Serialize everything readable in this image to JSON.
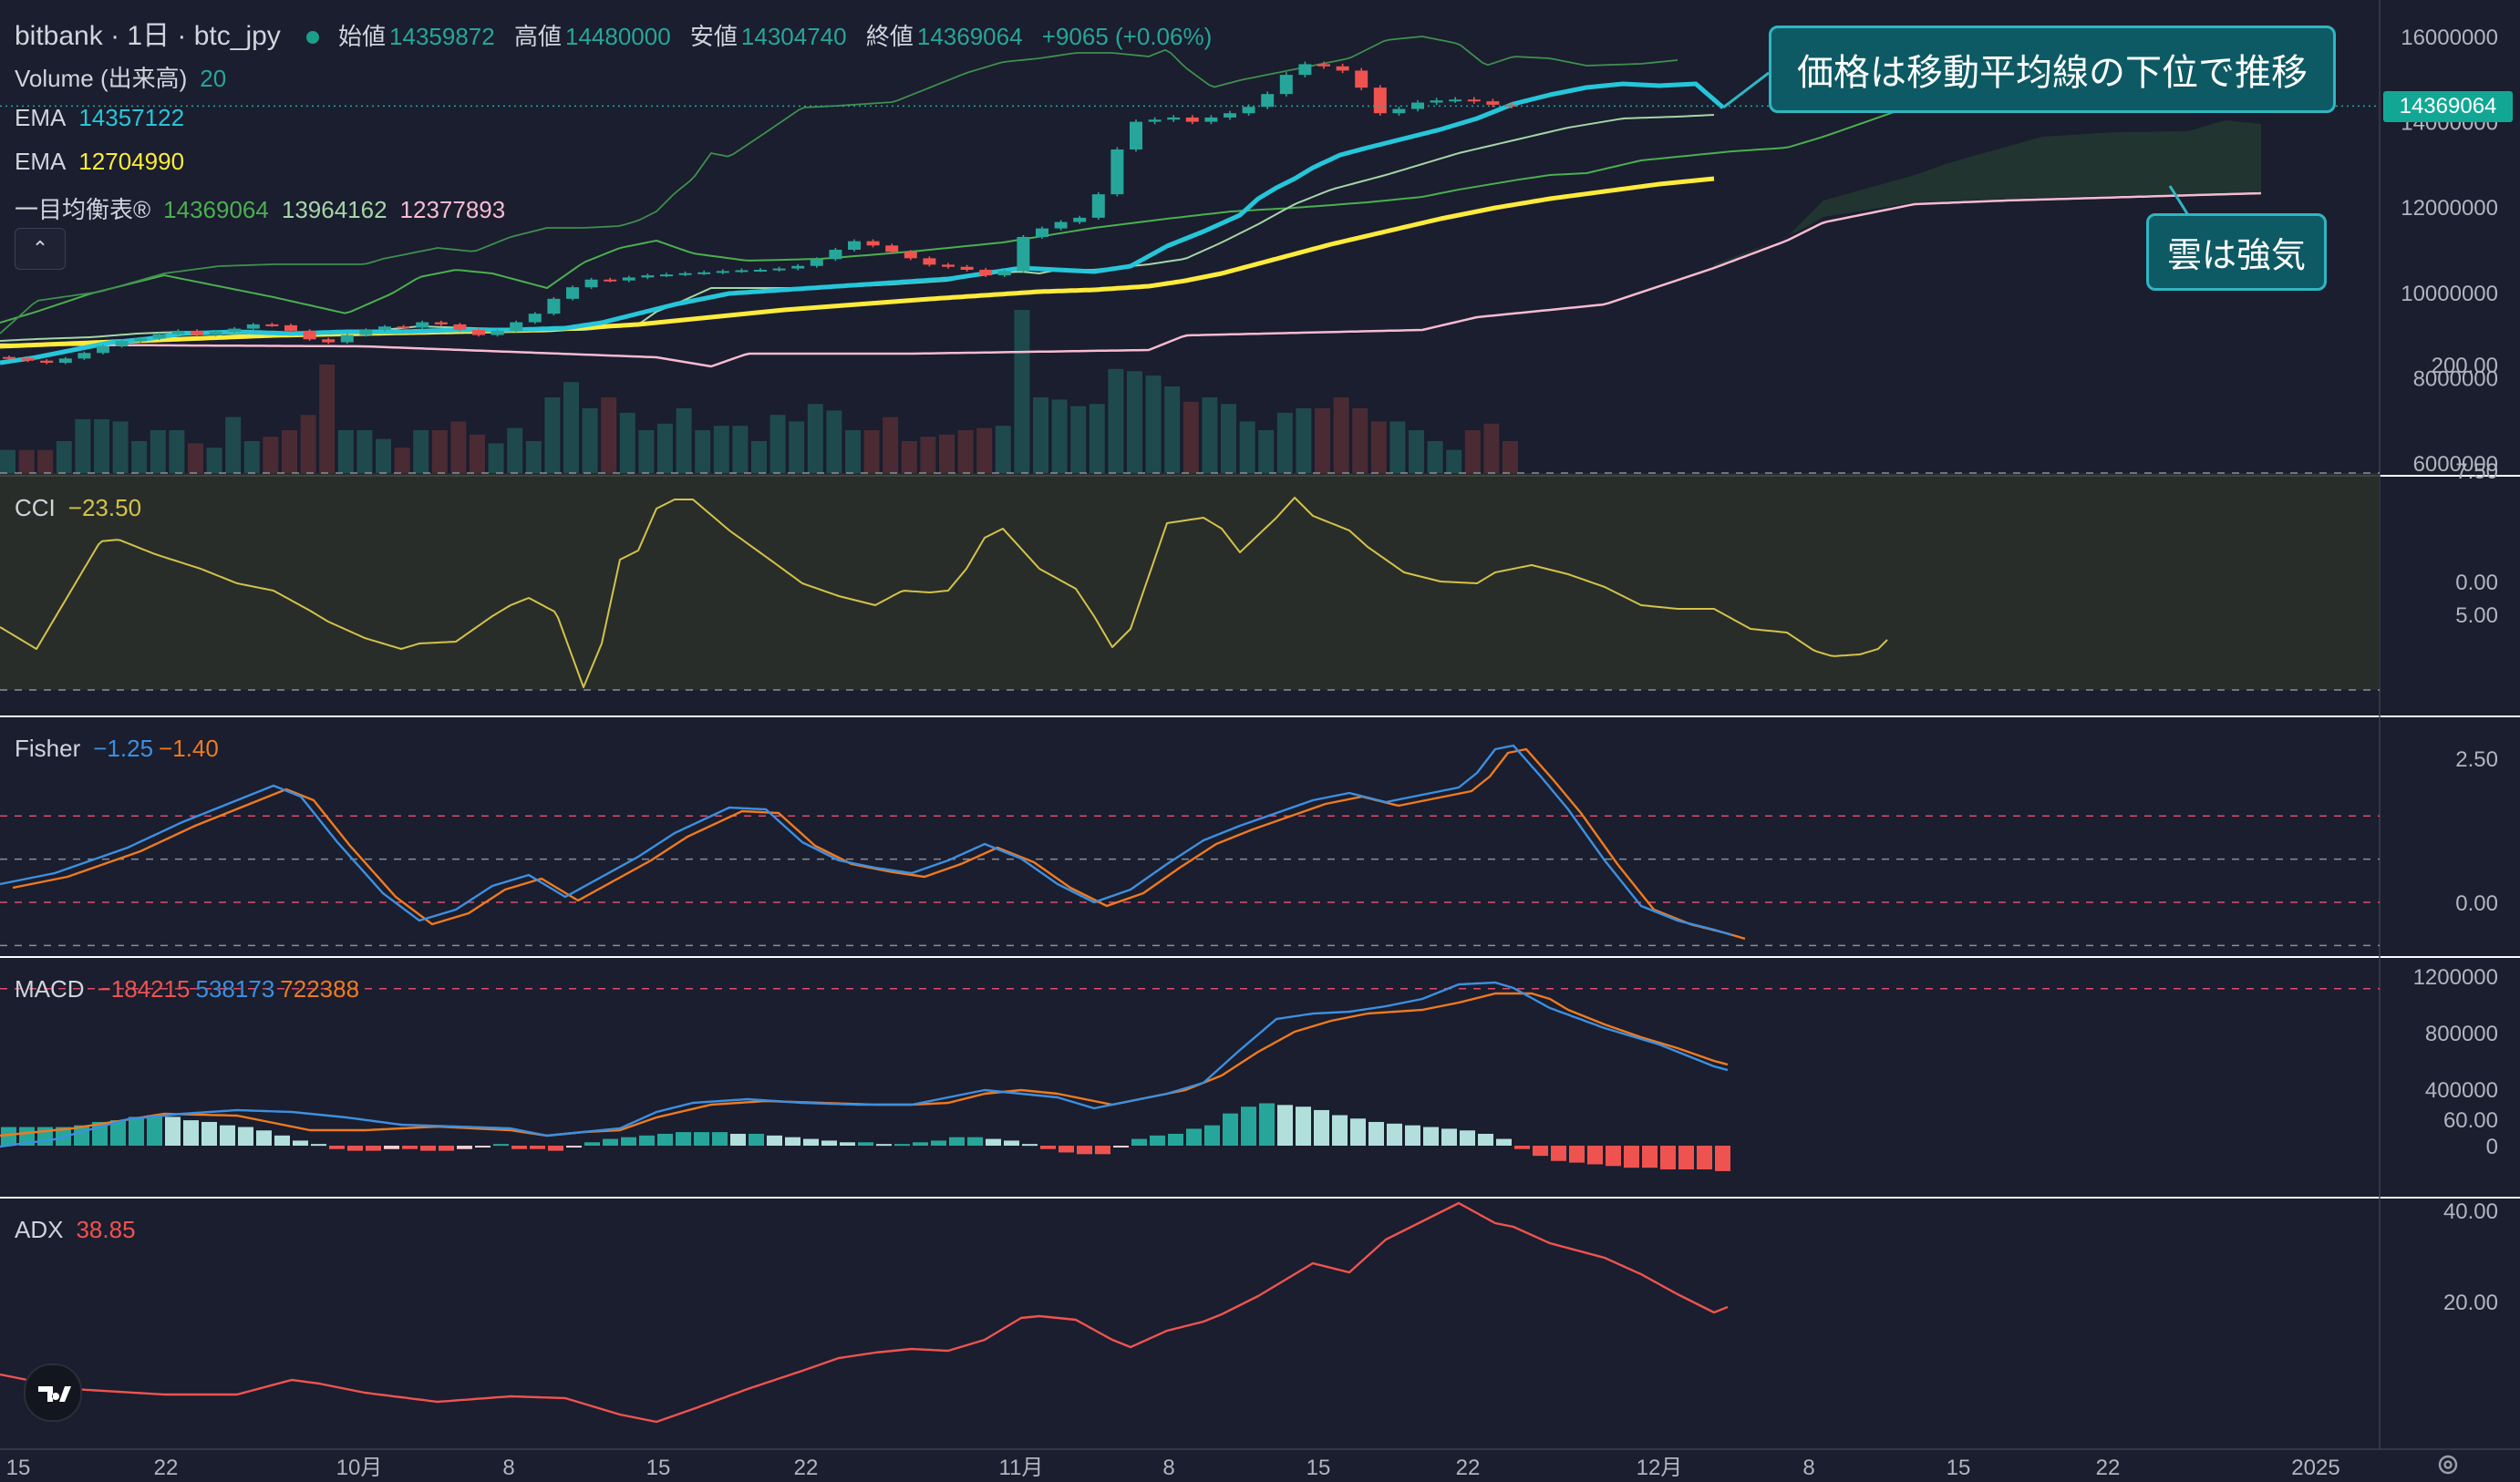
{
  "header": {
    "symbol": "bitbank · 1日 · btc_jpy",
    "ohlc": [
      {
        "label": "始値",
        "value": "14359872"
      },
      {
        "label": "高値",
        "value": "14480000"
      },
      {
        "label": "安値",
        "value": "14304740"
      },
      {
        "label": "終値",
        "value": "14369064"
      }
    ],
    "change": "+9065 (+0.06%)"
  },
  "indicators": {
    "volume_label": "Volume (出来高)",
    "volume_value": "20",
    "ema1_label": "EMA",
    "ema1_value": "14357122",
    "ema2_label": "EMA",
    "ema2_value": "12704990",
    "ichimoku_label": "一目均衡表®",
    "ichimoku_v1": "14369064",
    "ichimoku_v2": "13964162",
    "ichimoku_v3": "12377893",
    "cci_label": "CCI",
    "cci_value": "−23.50",
    "fisher_label": "Fisher",
    "fisher_v1": "−1.25",
    "fisher_v2": "−1.40",
    "macd_label": "MACD",
    "macd_v1": "−184215",
    "macd_v2": "538173",
    "macd_v3": "722388",
    "adx_label": "ADX",
    "adx_value": "38.85"
  },
  "annotations": {
    "callout_top": "価格は移動平均線の下位で推移",
    "callout_cloud": "雲は強気"
  },
  "price_tag": "14369064",
  "colors": {
    "bg": "#1a1e2e",
    "up": "#26a69a",
    "down": "#ef5350",
    "ema_fast": "#26c6da",
    "ema_slow": "#ffeb3b",
    "ichi_green": "#4caf50",
    "ichi_light": "#a5d6a7",
    "ichi_pink": "#f8bbd0",
    "cci": "#d4c24a",
    "fisher1": "#3d8fe0",
    "fisher2": "#f07a1e",
    "macd": "#3d8fe0",
    "signal": "#f07a1e",
    "adx": "#ef5350"
  },
  "chart_data": [
    {
      "type": "candlestick",
      "title": "bitbank · 1日 · btc_jpy",
      "x_axis_ticks": [
        "15",
        "22",
        "10月",
        "8",
        "15",
        "22",
        "11月",
        "8",
        "15",
        "22",
        "12月",
        "8",
        "15",
        "22",
        "2025"
      ],
      "y_axis_ticks": [
        "16000000",
        "14000000",
        "12000000",
        "10000000",
        "8000000",
        "6000000"
      ],
      "ylim": [
        5900000,
        16300000
      ],
      "closes": [
        8460000,
        8400000,
        8350000,
        8450000,
        8580000,
        8740000,
        8860000,
        8920000,
        9020000,
        9100000,
        9000000,
        9080000,
        9150000,
        9250000,
        9230000,
        9100000,
        8900000,
        8830000,
        9000000,
        9120000,
        9200000,
        9180000,
        9300000,
        9250000,
        9120000,
        9000000,
        9100000,
        9300000,
        9500000,
        9850000,
        10120000,
        10300000,
        10280000,
        10350000,
        10400000,
        10420000,
        10450000,
        10470000,
        10500000,
        10520000,
        10530000,
        10560000,
        10620000,
        10780000,
        11000000,
        11200000,
        11100000,
        10950000,
        10800000,
        10650000,
        10600000,
        10530000,
        10400000,
        10500000,
        11300000,
        11500000,
        11650000,
        11750000,
        12300000,
        13350000,
        14000000,
        14050000,
        14100000,
        14000000,
        14100000,
        14200000,
        14350000,
        14650000,
        15100000,
        15350000,
        15300000,
        15200000,
        14800000,
        14200000,
        14300000,
        14450000,
        14500000,
        14520000,
        14480000,
        14400000,
        14369064
      ],
      "volume": {
        "label": "Volume (出来高)",
        "last": 20
      },
      "ema": [
        {
          "name": "EMA",
          "last": 14357122
        },
        {
          "name": "EMA",
          "last": 12704990
        }
      ],
      "ichimoku": {
        "name": "一目均衡表®",
        "values": [
          14369064,
          13964162,
          12377893
        ]
      }
    },
    {
      "type": "line",
      "title": "CCI",
      "y_axis_ticks": [
        "200.00",
        "0.00"
      ],
      "ylim": [
        -300,
        300
      ],
      "band": [
        -100,
        100
      ],
      "last": -23.5
    },
    {
      "type": "line",
      "title": "Fisher",
      "y_axis_ticks": [
        "7.50",
        "5.00",
        "2.50",
        "0.00"
      ],
      "ylim": [
        -2.4,
        7.8
      ],
      "last": [
        -1.25,
        -1.4
      ]
    },
    {
      "type": "bar+line",
      "title": "MACD",
      "y_axis_ticks": [
        "1200000",
        "800000",
        "400000",
        "0"
      ],
      "ylim": [
        -300000,
        1250000
      ],
      "last": [
        -184215,
        538173,
        722388
      ]
    },
    {
      "type": "line",
      "title": "ADX",
      "y_axis_ticks": [
        "60.00",
        "40.00",
        "20.00"
      ],
      "ylim": [
        5,
        63
      ],
      "last": 38.85
    }
  ]
}
